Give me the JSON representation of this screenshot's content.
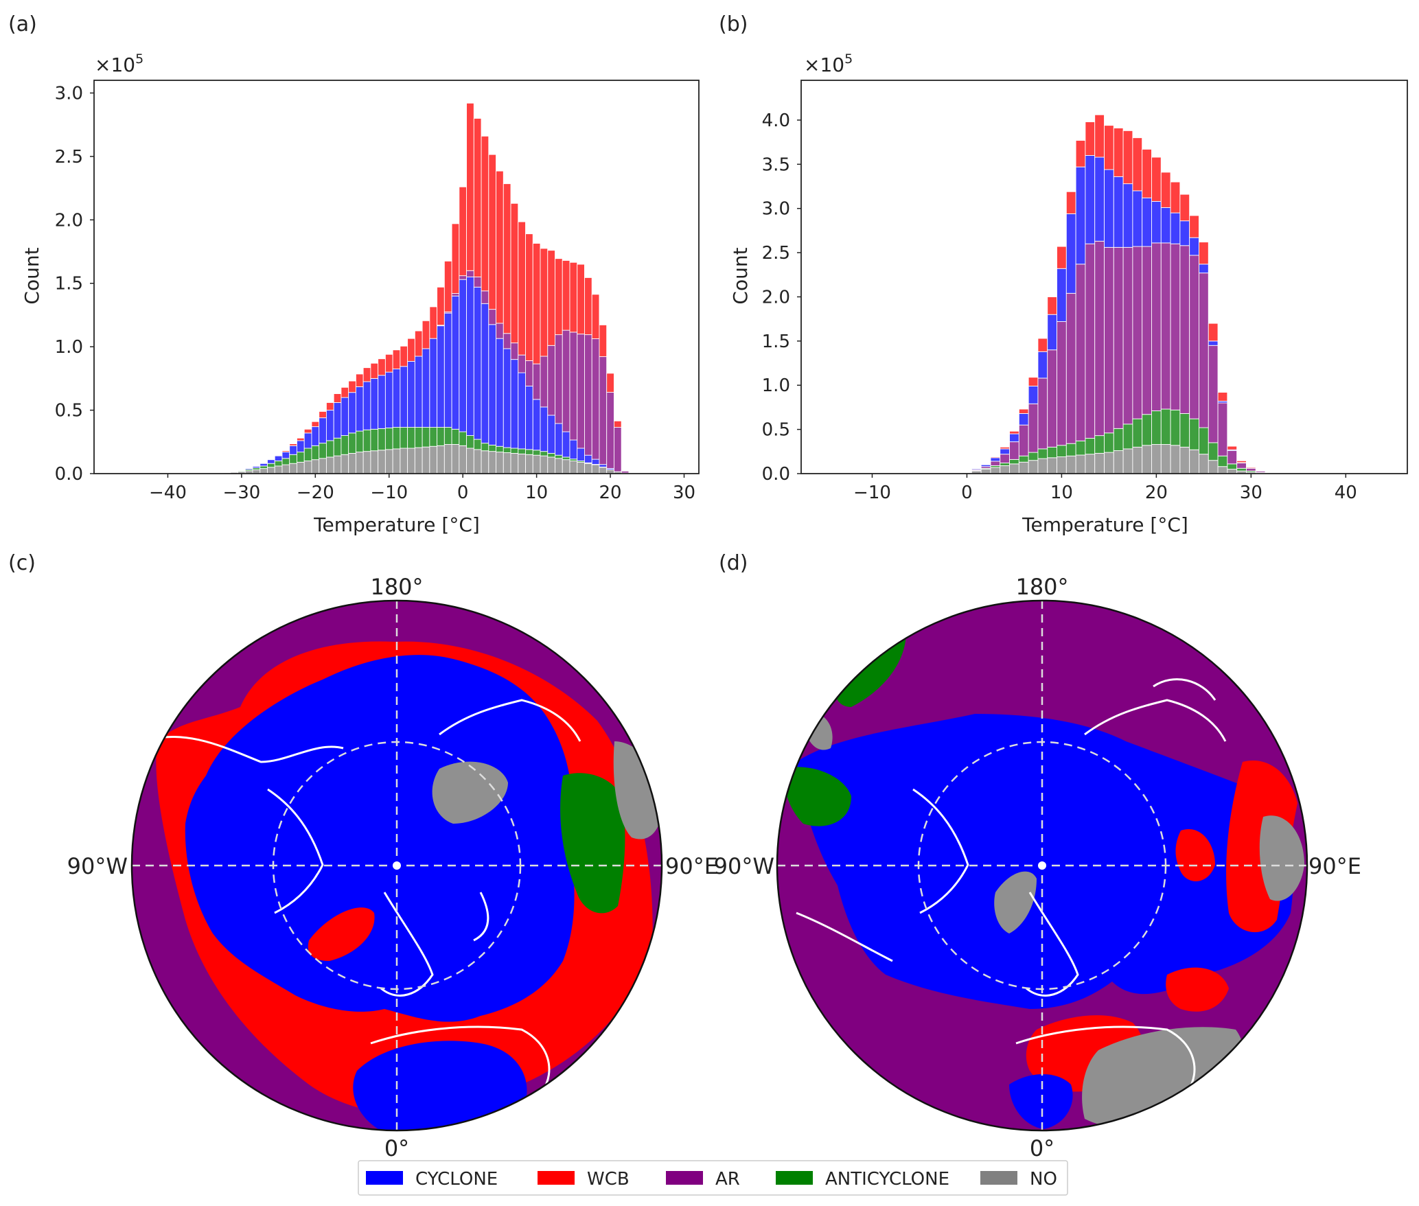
{
  "figure": {
    "panel_labels": [
      "(a)",
      "(b)",
      "(c)",
      "(d)"
    ],
    "colors": {
      "CYCLONE": "#0000ff",
      "WCB": "#ff0000",
      "AR": "#800080",
      "ANTICYCLONE": "#008000",
      "NO": "#808080"
    },
    "legend": {
      "placement": "bottom-center",
      "items": [
        "CYCLONE",
        "WCB",
        "AR",
        "ANTICYCLONE",
        "NO"
      ]
    }
  },
  "chart_data": [
    {
      "panel": "(a)",
      "type": "bar",
      "stacked": true,
      "xlabel": "Temperature [°C]",
      "ylabel": "Count",
      "y_multiplier": "×10^5",
      "xlim": [
        -50,
        32
      ],
      "ylim": [
        0,
        3.1
      ],
      "xticks": [
        -40,
        -30,
        -20,
        -10,
        0,
        10,
        20,
        30
      ],
      "yticks": [
        "0.0",
        "0.5",
        "1.0",
        "1.5",
        "2.0",
        "2.5",
        "3.0"
      ],
      "bin_width": 1,
      "x": [
        -33,
        -32,
        -31,
        -30,
        -29,
        -28,
        -27,
        -26,
        -25,
        -24,
        -23,
        -22,
        -21,
        -20,
        -19,
        -18,
        -17,
        -16,
        -15,
        -14,
        -13,
        -12,
        -11,
        -10,
        -9,
        -8,
        -7,
        -6,
        -5,
        -4,
        -3,
        -2,
        -1,
        0,
        1,
        2,
        3,
        4,
        5,
        6,
        7,
        8,
        9,
        10,
        11,
        12,
        13,
        14,
        15,
        16,
        17,
        18,
        19,
        20,
        21,
        22
      ],
      "series": [
        {
          "name": "NO",
          "values": [
            0.003,
            0.006,
            0.01,
            0.015,
            0.022,
            0.03,
            0.04,
            0.05,
            0.06,
            0.07,
            0.08,
            0.09,
            0.1,
            0.11,
            0.12,
            0.13,
            0.14,
            0.15,
            0.16,
            0.17,
            0.175,
            0.18,
            0.185,
            0.19,
            0.195,
            0.2,
            0.2,
            0.205,
            0.21,
            0.215,
            0.22,
            0.23,
            0.23,
            0.22,
            0.2,
            0.19,
            0.18,
            0.175,
            0.17,
            0.165,
            0.16,
            0.155,
            0.15,
            0.145,
            0.14,
            0.13,
            0.12,
            0.11,
            0.1,
            0.09,
            0.08,
            0.07,
            0.05,
            0.03,
            0.015,
            0.005
          ]
        },
        {
          "name": "ANTICYCLONE",
          "values": [
            0.001,
            0.002,
            0.004,
            0.006,
            0.01,
            0.015,
            0.02,
            0.03,
            0.04,
            0.05,
            0.07,
            0.08,
            0.1,
            0.11,
            0.12,
            0.13,
            0.14,
            0.15,
            0.16,
            0.165,
            0.17,
            0.17,
            0.17,
            0.17,
            0.17,
            0.165,
            0.165,
            0.16,
            0.155,
            0.15,
            0.145,
            0.135,
            0.12,
            0.11,
            0.1,
            0.08,
            0.06,
            0.05,
            0.045,
            0.04,
            0.04,
            0.04,
            0.04,
            0.04,
            0.035,
            0.03,
            0.025,
            0.02,
            0.015,
            0.01,
            0.005,
            0.003,
            0.002,
            0.001,
            0,
            0
          ]
        },
        {
          "name": "CYCLONE",
          "values": [
            0,
            0.001,
            0.002,
            0.004,
            0.008,
            0.012,
            0.02,
            0.03,
            0.04,
            0.05,
            0.07,
            0.09,
            0.12,
            0.15,
            0.2,
            0.24,
            0.28,
            0.3,
            0.32,
            0.35,
            0.38,
            0.4,
            0.42,
            0.44,
            0.46,
            0.48,
            0.52,
            0.56,
            0.62,
            0.7,
            0.8,
            0.9,
            1.05,
            1.2,
            1.25,
            1.2,
            1.1,
            0.95,
            0.85,
            0.78,
            0.7,
            0.6,
            0.5,
            0.4,
            0.35,
            0.3,
            0.25,
            0.2,
            0.15,
            0.1,
            0.06,
            0.04,
            0.02,
            0.01,
            0,
            0
          ]
        },
        {
          "name": "AR",
          "values": [
            0,
            0,
            0,
            0,
            0,
            0,
            0,
            0,
            0,
            0,
            0,
            0,
            0,
            0,
            0,
            0,
            0,
            0,
            0,
            0,
            0,
            0,
            0,
            0,
            0,
            0,
            0,
            0,
            0,
            0,
            0.005,
            0.01,
            0.02,
            0.03,
            0.05,
            0.08,
            0.1,
            0.12,
            0.12,
            0.12,
            0.13,
            0.14,
            0.2,
            0.28,
            0.4,
            0.55,
            0.7,
            0.8,
            0.85,
            0.9,
            0.95,
            0.95,
            0.85,
            0.6,
            0.35,
            0.015
          ]
        },
        {
          "name": "WCB",
          "values": [
            0,
            0,
            0,
            0,
            0,
            0.001,
            0.002,
            0.003,
            0.005,
            0.01,
            0.015,
            0.02,
            0.03,
            0.04,
            0.05,
            0.06,
            0.07,
            0.08,
            0.09,
            0.1,
            0.11,
            0.12,
            0.13,
            0.14,
            0.15,
            0.16,
            0.18,
            0.2,
            0.22,
            0.25,
            0.3,
            0.4,
            0.55,
            0.7,
            1.32,
            1.25,
            1.22,
            1.22,
            1.2,
            1.18,
            1.1,
            1.05,
            1.0,
            0.95,
            0.85,
            0.75,
            0.6,
            0.55,
            0.55,
            0.55,
            0.45,
            0.35,
            0.25,
            0.15,
            0.05,
            0.005
          ]
        }
      ]
    },
    {
      "panel": "(b)",
      "type": "bar",
      "stacked": true,
      "xlabel": "Temperature [°C]",
      "ylabel": "Count",
      "y_multiplier": "×10^5",
      "xlim": [
        -17.5,
        46.5
      ],
      "ylim": [
        0,
        4.45
      ],
      "xticks": [
        -10,
        0,
        10,
        20,
        30,
        40
      ],
      "yticks": [
        "0.0",
        "0.5",
        "1.0",
        "1.5",
        "2.0",
        "2.5",
        "3.0",
        "3.5",
        "4.0"
      ],
      "bin_width": 1,
      "x": [
        -1,
        0,
        1,
        2,
        3,
        4,
        5,
        6,
        7,
        8,
        9,
        10,
        11,
        12,
        13,
        14,
        15,
        16,
        17,
        18,
        19,
        20,
        21,
        22,
        23,
        24,
        25,
        26,
        27,
        28,
        29,
        30,
        31,
        32,
        33,
        34
      ],
      "series": [
        {
          "name": "NO",
          "values": [
            0.003,
            0.01,
            0.03,
            0.05,
            0.07,
            0.09,
            0.11,
            0.13,
            0.15,
            0.17,
            0.18,
            0.19,
            0.2,
            0.21,
            0.22,
            0.23,
            0.24,
            0.26,
            0.28,
            0.3,
            0.32,
            0.33,
            0.33,
            0.32,
            0.3,
            0.27,
            0.22,
            0.15,
            0.08,
            0.05,
            0.03,
            0.015,
            0.008,
            0.004,
            0.002,
            0.001
          ]
        },
        {
          "name": "ANTICYCLONE",
          "values": [
            0,
            0.002,
            0.005,
            0.01,
            0.02,
            0.03,
            0.05,
            0.07,
            0.09,
            0.11,
            0.12,
            0.13,
            0.14,
            0.16,
            0.18,
            0.2,
            0.22,
            0.25,
            0.28,
            0.32,
            0.35,
            0.38,
            0.4,
            0.4,
            0.38,
            0.35,
            0.3,
            0.2,
            0.12,
            0.06,
            0.03,
            0.015,
            0.005,
            0.002,
            0,
            0
          ]
        },
        {
          "name": "AR",
          "values": [
            0,
            0.002,
            0.01,
            0.02,
            0.05,
            0.1,
            0.2,
            0.35,
            0.55,
            0.8,
            1.1,
            1.4,
            1.7,
            2.0,
            2.2,
            2.2,
            2.1,
            2.05,
            2.0,
            1.95,
            1.9,
            1.9,
            1.88,
            1.88,
            1.9,
            1.85,
            1.75,
            1.1,
            0.6,
            0.15,
            0.06,
            0.03,
            0.015,
            0.006,
            0.002,
            0
          ]
        },
        {
          "name": "CYCLONE",
          "values": [
            0,
            0.002,
            0.01,
            0.02,
            0.04,
            0.06,
            0.09,
            0.13,
            0.2,
            0.3,
            0.4,
            0.6,
            0.9,
            1.1,
            1.0,
            0.95,
            0.88,
            0.8,
            0.72,
            0.63,
            0.55,
            0.47,
            0.4,
            0.35,
            0.28,
            0.2,
            0.1,
            0.05,
            0.02,
            0.01,
            0.005,
            0.002,
            0.001,
            0,
            0,
            0
          ]
        },
        {
          "name": "WCB",
          "values": [
            0,
            0.001,
            0.003,
            0.005,
            0.01,
            0.02,
            0.03,
            0.05,
            0.1,
            0.15,
            0.2,
            0.25,
            0.25,
            0.3,
            0.38,
            0.48,
            0.5,
            0.55,
            0.6,
            0.6,
            0.55,
            0.5,
            0.4,
            0.35,
            0.3,
            0.25,
            0.25,
            0.2,
            0.1,
            0.04,
            0.02,
            0.01,
            0.005,
            0.002,
            0,
            0
          ]
        }
      ]
    }
  ],
  "maps": [
    {
      "panel": "(c)",
      "top_label": "180°",
      "left_label": "90°W",
      "right_label": "90°E",
      "bottom_label": "0°"
    },
    {
      "panel": "(d)",
      "top_label": "180°",
      "left_label": "90°W",
      "right_label": "90°E",
      "bottom_label": "0°"
    }
  ]
}
